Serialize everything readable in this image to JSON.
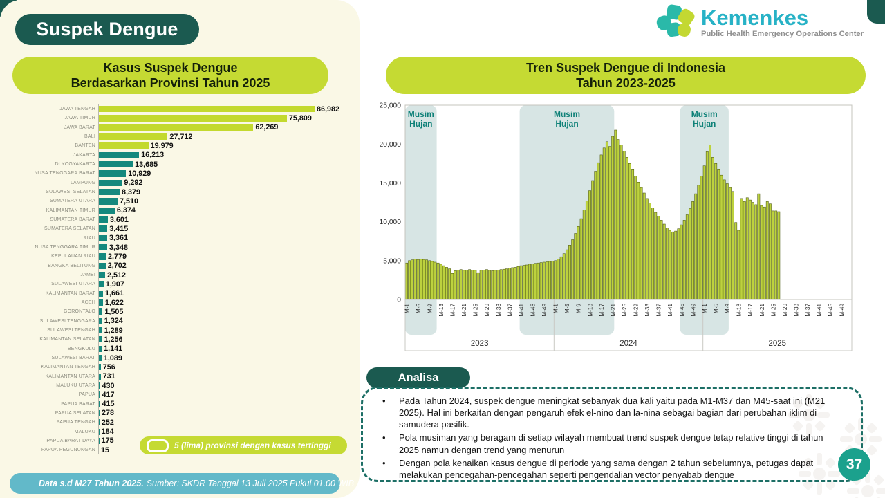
{
  "header": {
    "page_title": "Suspek Dengue"
  },
  "logo": {
    "brand": "Kemenkes",
    "subtitle": "Public Health Emergency Operations Center"
  },
  "province_panel": {
    "title_line1": "Kasus Suspek Dengue",
    "title_line2": "Berdasarkan Provinsi Tahun 2025",
    "legend_label": "5 (lima) provinsi dengan kasus tertinggi"
  },
  "trend_panel": {
    "title_line1": "Tren Suspek Dengue di Indonesia",
    "title_line2": "Tahun 2023-2025"
  },
  "analysis": {
    "header_label": "Analisa",
    "bullets": [
      "Pada Tahun 2024, suspek dengue meningkat sebanyak dua kali yaitu pada M1-M37 dan M45-saat ini (M21 2025). Hal ini berkaitan dengan pengaruh efek el-nino dan la-nina sebagai bagian dari perubahan iklim di samudera pasifik.",
      "Pola musiman yang beragam di setiap wilayah membuat trend suspek dengue tetap relative tinggi di tahun 2025 namun dengan trend yang menurun",
      "Dengan pola kenaikan kasus dengue di periode yang sama dengan 2 tahun sebelumnya, petugas dapat melakukan pencegahan-pencegahan seperti pengendalian vector penyabab dengue"
    ]
  },
  "footer": {
    "data_note_bold": "Data s.d M27 Tahun 2025.",
    "source_note": "Sumber: SKDR Tanggal 13 Juli 2025 Pukul 01.00 WIB"
  },
  "page_number": "37",
  "colors": {
    "dark_teal": "#1b5a50",
    "lime": "#c5da33",
    "province_bar_teal": "#15897e",
    "province_bar_lime": "#c3d92e",
    "trend_bar_fill": "#bdd23e",
    "trend_bar_stroke": "#4b560f",
    "season_band": "#d7e5e4",
    "season_text": "#0f8178",
    "footer_blue": "#62b9c9",
    "page_circle": "#1ba18d"
  },
  "chart_data": [
    {
      "type": "bar",
      "orientation": "horizontal",
      "title": "Kasus Suspek Dengue Berdasarkan Provinsi Tahun 2025",
      "highlight_top_n": 5,
      "highlight_note": "5 (lima) provinsi dengan kasus tertinggi",
      "categories": [
        "JAWA TENGAH",
        "JAWA TIMUR",
        "JAWA BARAT",
        "BALI",
        "BANTEN",
        "JAKARTA",
        "DI YOGYAKARTA",
        "NUSA TENGGARA BARAT",
        "LAMPUNG",
        "SULAWESI SELATAN",
        "SUMATERA UTARA",
        "KALIMANTAN TIMUR",
        "SUMATERA BARAT",
        "SUMATERA SELATAN",
        "RIAU",
        "NUSA TENGGARA TIMUR",
        "KEPULAUAN RIAU",
        "BANGKA BELITUNG",
        "JAMBI",
        "SULAWESI UTARA",
        "KALIMANTAN BARAT",
        "ACEH",
        "GORONTALO",
        "SULAWESI TENGGARA",
        "SULAWESI TENGAH",
        "KALIMANTAN SELATAN",
        "BENGKULU",
        "SULAWESI BARAT",
        "KALIMANTAN TENGAH",
        "KALIMANTAN UTARA",
        "MALUKU UTARA",
        "PAPUA",
        "PAPUA BARAT",
        "PAPUA SELATAN",
        "PAPUA TENGAH",
        "MALUKU",
        "PAPUA BARAT DAYA",
        "PAPUA PEGUNUNGAN"
      ],
      "values": [
        86982,
        75809,
        62269,
        27712,
        19979,
        16213,
        13685,
        10929,
        9292,
        8379,
        7510,
        6374,
        3601,
        3415,
        3361,
        3348,
        2779,
        2702,
        2512,
        1907,
        1661,
        1622,
        1505,
        1324,
        1289,
        1256,
        1141,
        1089,
        756,
        731,
        430,
        417,
        415,
        278,
        252,
        184,
        175,
        15
      ]
    },
    {
      "type": "bar",
      "title": "Tren Suspek Dengue di Indonesia Tahun 2023-2025",
      "x_unit": "minggu epidemiologi (M-n)",
      "years": [
        "2023",
        "2024",
        "2025"
      ],
      "tick_labels": [
        "M-1",
        "M-5",
        "M-9",
        "M-13",
        "M-17",
        "M-21",
        "M-25",
        "M-29",
        "M-33",
        "M-37",
        "M-41",
        "M-45",
        "M-49"
      ],
      "ylim": [
        0,
        25000
      ],
      "yticks": [
        0,
        5000,
        10000,
        15000,
        20000,
        25000
      ],
      "grid": false,
      "series": [
        {
          "name": "2023",
          "values": [
            4700,
            5000,
            5100,
            5200,
            5150,
            5200,
            5150,
            5100,
            5000,
            4900,
            4800,
            4700,
            4550,
            4350,
            4150,
            3950,
            3350,
            3700,
            3800,
            3850,
            3750,
            3800,
            3850,
            3800,
            3750,
            3450,
            3750,
            3800,
            3850,
            3750,
            3700,
            3750,
            3800,
            3850,
            3900,
            3950,
            4050,
            4100,
            4150,
            4250,
            4350,
            4400,
            4450,
            4550,
            4600,
            4650,
            4700,
            4750,
            4800,
            4850,
            4900,
            4950
          ]
        },
        {
          "name": "2024",
          "values": [
            5000,
            5200,
            5500,
            5900,
            6400,
            7000,
            7700,
            8500,
            9400,
            10400,
            11500,
            12700,
            14000,
            15300,
            16500,
            17600,
            18600,
            19500,
            20300,
            19700,
            21000,
            21800,
            20600,
            19900,
            19100,
            18300,
            17500,
            16700,
            15900,
            15100,
            14400,
            13700,
            13000,
            12400,
            11800,
            11200,
            10700,
            10200,
            9700,
            9200,
            8900,
            8700,
            8800,
            9100,
            9600,
            10200,
            10900,
            11700,
            12600,
            13600,
            14700,
            15900
          ]
        },
        {
          "name": "2025",
          "values": [
            17200,
            19000,
            19900,
            18300,
            17500,
            16700,
            16000,
            15400,
            14900,
            14400,
            13900,
            9900,
            8900,
            13000,
            12600,
            13100,
            12800,
            12500,
            12200,
            13600,
            12100,
            11900,
            12600,
            12300,
            11400,
            11400,
            11300
          ]
        }
      ],
      "annotations": [
        {
          "label": "Musim Hujan",
          "from": "2023 M-1",
          "to": "2023 M-11",
          "start": 0,
          "end": 10
        },
        {
          "label": "Musim Hujan",
          "from": "2023 M-41",
          "to": "2024 M-21",
          "start": 40,
          "end": 72
        },
        {
          "label": "Musim Hujan",
          "from": "2024 M-45",
          "to": "2025 M-9",
          "start": 96,
          "end": 112
        }
      ]
    }
  ]
}
